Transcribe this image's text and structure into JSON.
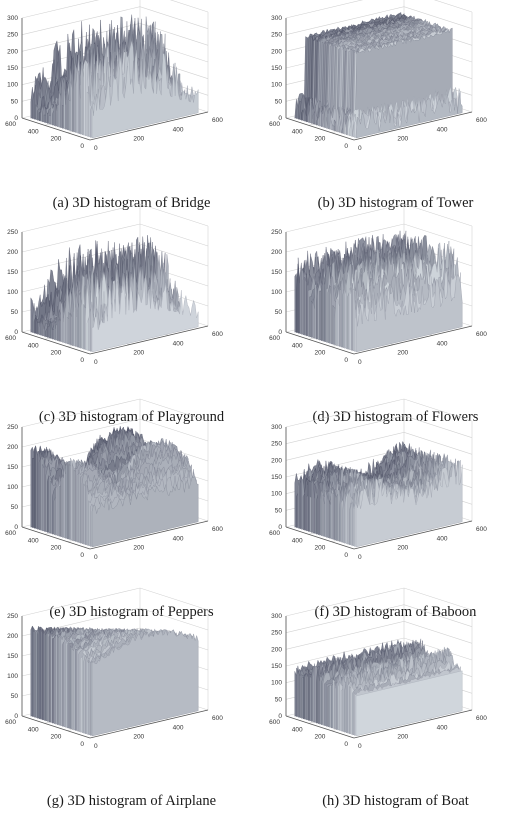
{
  "figure": {
    "panels": [
      {
        "caption": "(a) 3D histogram of Bridge"
      },
      {
        "caption": "(b) 3D histogram of Tower"
      },
      {
        "caption": "(c) 3D histogram of Playground"
      },
      {
        "caption": "(d) 3D histogram of Flowers"
      },
      {
        "caption": "(e) 3D histogram of Peppers"
      },
      {
        "caption": "(f) 3D histogram of Baboon"
      },
      {
        "caption": "(g) 3D histogram of Airplane"
      },
      {
        "caption": "(h) 3D histogram of Boat"
      }
    ]
  },
  "chart_data": [
    {
      "type": "surface",
      "title": "(a) 3D histogram of Bridge",
      "zlim": [
        0,
        300
      ],
      "z_ticks": [
        "0",
        "50",
        "100",
        "150",
        "200",
        "250",
        "300"
      ],
      "x_ticks": [
        "0",
        "200",
        "400",
        "600"
      ],
      "y_ticks": [
        "0",
        "200",
        "400",
        "600"
      ],
      "surface_style": "dense-spiky",
      "peak_height_estimate": 280,
      "colormap": "gray-bone"
    },
    {
      "type": "surface",
      "title": "(b) 3D histogram of Tower",
      "zlim": [
        0,
        300
      ],
      "z_ticks": [
        "0",
        "50",
        "100",
        "150",
        "200",
        "250",
        "300"
      ],
      "x_ticks": [
        "0",
        "200",
        "400",
        "600"
      ],
      "y_ticks": [
        "0",
        "200",
        "400",
        "600"
      ],
      "surface_style": "flat-plateau",
      "peak_height_estimate": 250,
      "colormap": "gray-bone"
    },
    {
      "type": "surface",
      "title": "(c) 3D histogram of Playground",
      "zlim": [
        0,
        250
      ],
      "z_ticks": [
        "0",
        "50",
        "100",
        "150",
        "200",
        "250"
      ],
      "x_ticks": [
        "0",
        "200",
        "400",
        "600"
      ],
      "y_ticks": [
        "0",
        "200",
        "400",
        "600"
      ],
      "surface_style": "dense-spiky",
      "peak_height_estimate": 210,
      "colormap": "gray-bone"
    },
    {
      "type": "surface",
      "title": "(d) 3D histogram of Flowers",
      "zlim": [
        0,
        250
      ],
      "z_ticks": [
        "0",
        "50",
        "100",
        "150",
        "200",
        "250"
      ],
      "x_ticks": [
        "0",
        "200",
        "400",
        "600"
      ],
      "y_ticks": [
        "0",
        "200",
        "400",
        "600"
      ],
      "surface_style": "wavy-spiky",
      "peak_height_estimate": 210,
      "colormap": "gray-bone"
    },
    {
      "type": "surface",
      "title": "(e) 3D histogram of Peppers",
      "zlim": [
        0,
        250
      ],
      "z_ticks": [
        "0",
        "50",
        "100",
        "150",
        "200",
        "250"
      ],
      "x_ticks": [
        "0",
        "200",
        "400",
        "600"
      ],
      "y_ticks": [
        "0",
        "200",
        "400",
        "600"
      ],
      "surface_style": "smooth-lobes",
      "peak_height_estimate": 230,
      "colormap": "gray-bone"
    },
    {
      "type": "surface",
      "title": "(f) 3D histogram of Baboon",
      "zlim": [
        0,
        300
      ],
      "z_ticks": [
        "0",
        "50",
        "100",
        "150",
        "200",
        "250",
        "300"
      ],
      "x_ticks": [
        "0",
        "200",
        "400",
        "600"
      ],
      "y_ticks": [
        "0",
        "200",
        "400",
        "600"
      ],
      "surface_style": "dense-mid",
      "peak_height_estimate": 200,
      "colormap": "gray-bone"
    },
    {
      "type": "surface",
      "title": "(g) 3D histogram of Airplane",
      "zlim": [
        0,
        250
      ],
      "z_ticks": [
        "0",
        "50",
        "100",
        "150",
        "200",
        "250"
      ],
      "x_ticks": [
        "0",
        "200",
        "400",
        "600"
      ],
      "y_ticks": [
        "0",
        "200",
        "400",
        "600"
      ],
      "surface_style": "high-plateau",
      "peak_height_estimate": 230,
      "colormap": "gray-bone"
    },
    {
      "type": "surface",
      "title": "(h) 3D histogram of Boat",
      "zlim": [
        0,
        300
      ],
      "z_ticks": [
        "0",
        "50",
        "100",
        "150",
        "200",
        "250",
        "300"
      ],
      "x_ticks": [
        "0",
        "200",
        "400",
        "600"
      ],
      "y_ticks": [
        "0",
        "200",
        "400",
        "600"
      ],
      "surface_style": "mid-plateau",
      "peak_height_estimate": 200,
      "colormap": "gray-bone"
    }
  ]
}
